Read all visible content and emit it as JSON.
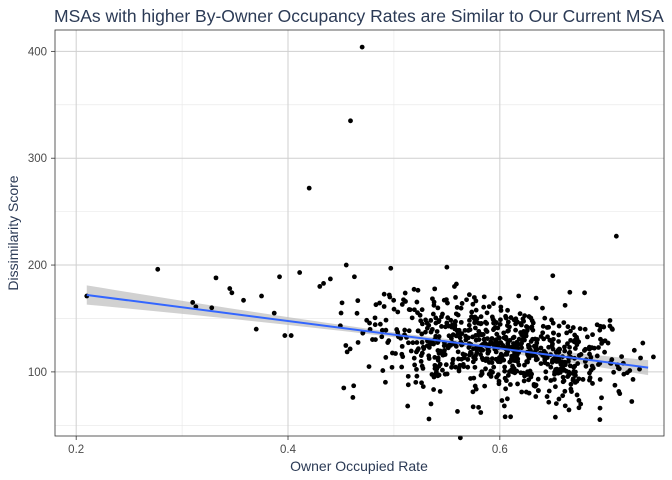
{
  "chart_data": {
    "type": "scatter",
    "title": "MSAs with higher By-Owner Occupancy Rates are Similar to Our Current MSA",
    "xlabel": "Owner Occupied Rate",
    "ylabel": "Dissimilarity Score",
    "xlim": [
      0.18,
      0.755
    ],
    "ylim": [
      40,
      420
    ],
    "x_ticks": [
      0.2,
      0.4,
      0.6
    ],
    "x_tick_labels": [
      "0.2",
      "0.4",
      "0.6"
    ],
    "y_ticks": [
      100,
      200,
      300,
      400
    ],
    "y_tick_labels": [
      "100",
      "200",
      "300",
      "400"
    ],
    "grid": true,
    "legend": "none",
    "point_color": "#000000",
    "smooth": {
      "method": "linear",
      "x": [
        0.21,
        0.74
      ],
      "y": [
        172,
        104
      ],
      "ci_upper": [
        181,
        111
      ],
      "ci_lower": [
        163,
        97
      ],
      "line_color": "#3366ff",
      "band_color": "#bdbdbd"
    },
    "outliers": [
      {
        "x": 0.21,
        "y": 171
      },
      {
        "x": 0.277,
        "y": 196
      },
      {
        "x": 0.31,
        "y": 165
      },
      {
        "x": 0.313,
        "y": 161
      },
      {
        "x": 0.328,
        "y": 160
      },
      {
        "x": 0.332,
        "y": 188
      },
      {
        "x": 0.345,
        "y": 178
      },
      {
        "x": 0.347,
        "y": 174
      },
      {
        "x": 0.358,
        "y": 167
      },
      {
        "x": 0.37,
        "y": 140
      },
      {
        "x": 0.375,
        "y": 171
      },
      {
        "x": 0.387,
        "y": 155
      },
      {
        "x": 0.392,
        "y": 189
      },
      {
        "x": 0.397,
        "y": 134
      },
      {
        "x": 0.403,
        "y": 134
      },
      {
        "x": 0.411,
        "y": 193
      },
      {
        "x": 0.42,
        "y": 272
      },
      {
        "x": 0.43,
        "y": 180
      },
      {
        "x": 0.44,
        "y": 187
      },
      {
        "x": 0.455,
        "y": 200
      },
      {
        "x": 0.459,
        "y": 335
      },
      {
        "x": 0.462,
        "y": 87
      },
      {
        "x": 0.47,
        "y": 404
      },
      {
        "x": 0.497,
        "y": 197
      },
      {
        "x": 0.513,
        "y": 68
      },
      {
        "x": 0.535,
        "y": 70
      },
      {
        "x": 0.55,
        "y": 198
      },
      {
        "x": 0.56,
        "y": 63
      },
      {
        "x": 0.582,
        "y": 62
      },
      {
        "x": 0.605,
        "y": 58
      },
      {
        "x": 0.65,
        "y": 190
      },
      {
        "x": 0.68,
        "y": 174
      },
      {
        "x": 0.71,
        "y": 227
      },
      {
        "x": 0.735,
        "y": 127
      },
      {
        "x": 0.745,
        "y": 114
      }
    ],
    "bulk": {
      "count": 760,
      "x_range": [
        0.43,
        0.735
      ],
      "x_center": 0.6,
      "y_trend": [
        0.21,
        172,
        0.74,
        104
      ],
      "y_spread": 22
    }
  }
}
